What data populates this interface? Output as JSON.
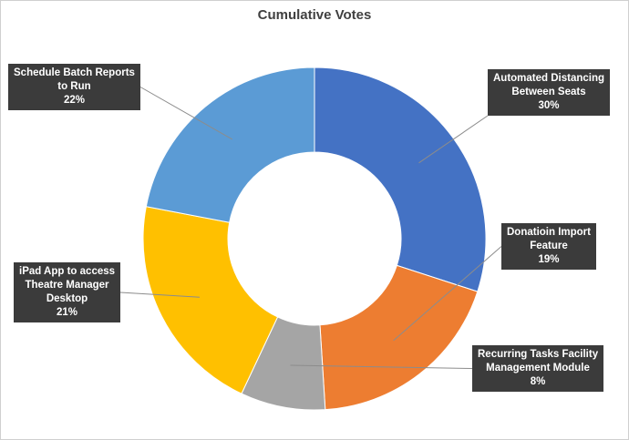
{
  "chart_data": {
    "type": "pie",
    "style": "donut",
    "title": "Cumulative Votes",
    "slices": [
      {
        "name_lines": [
          "Automated Distancing",
          "Between Seats"
        ],
        "value": 30,
        "label": "30%",
        "color": "#4472C4"
      },
      {
        "name_lines": [
          "Donatioin Import",
          "Feature"
        ],
        "value": 19,
        "label": "19%",
        "color": "#ED7D31"
      },
      {
        "name_lines": [
          "Recurring Tasks Facility",
          "Management Module"
        ],
        "value": 8,
        "label": "8%",
        "color": "#A5A5A5"
      },
      {
        "name_lines": [
          "iPad App to access",
          "Theatre Manager",
          "Desktop"
        ],
        "value": 21,
        "label": "21%",
        "color": "#FFC000"
      },
      {
        "name_lines": [
          "Schedule Batch Reports",
          "to Run"
        ],
        "value": 22,
        "label": "22%",
        "color": "#5B9BD5"
      }
    ]
  }
}
